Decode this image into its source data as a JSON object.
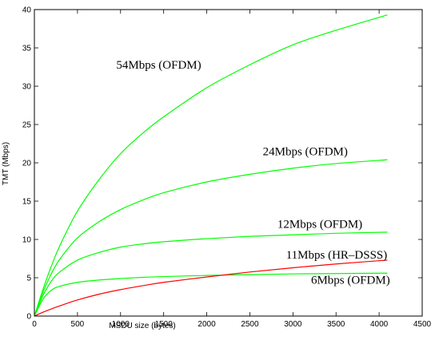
{
  "chart_data": {
    "type": "line",
    "title": "",
    "xlabel": "MSDU size (bytes)",
    "ylabel": "TMT (Mbps)",
    "xlim": [
      0,
      4500
    ],
    "ylim": [
      0,
      40
    ],
    "xticks": [
      0,
      500,
      1000,
      1500,
      2000,
      2500,
      3000,
      3500,
      4000,
      4500
    ],
    "yticks": [
      0,
      5,
      10,
      15,
      20,
      25,
      30,
      35,
      40
    ],
    "grid": false,
    "legend": "none",
    "series": [
      {
        "name": "54Mbps (OFDM)",
        "color": "#00ff00",
        "x": [
          0,
          100,
          200,
          300,
          500,
          750,
          1000,
          1250,
          1500,
          2000,
          2500,
          3000,
          3500,
          4096
        ],
        "y": [
          0,
          3.5,
          6.6,
          9.3,
          13.7,
          17.8,
          21.2,
          23.8,
          26.0,
          29.8,
          32.8,
          35.4,
          37.3,
          39.3
        ]
      },
      {
        "name": "24Mbps (OFDM)",
        "color": "#00ff00",
        "x": [
          0,
          100,
          200,
          300,
          500,
          750,
          1000,
          1250,
          1500,
          2000,
          2500,
          3000,
          3500,
          4096
        ],
        "y": [
          0,
          3.1,
          5.6,
          7.5,
          10.2,
          12.3,
          13.9,
          15.1,
          16.1,
          17.5,
          18.5,
          19.3,
          19.9,
          20.4
        ]
      },
      {
        "name": "12Mbps (OFDM)",
        "color": "#00ff00",
        "x": [
          0,
          100,
          200,
          300,
          500,
          750,
          1000,
          1250,
          1500,
          2000,
          2500,
          3000,
          3500,
          4096
        ],
        "y": [
          0,
          2.7,
          4.6,
          5.8,
          7.3,
          8.3,
          9.0,
          9.4,
          9.7,
          10.1,
          10.4,
          10.6,
          10.8,
          10.95
        ]
      },
      {
        "name": "6Mbps (OFDM)",
        "color": "#00ff00",
        "x": [
          0,
          100,
          200,
          300,
          500,
          750,
          1000,
          1250,
          1500,
          2000,
          2500,
          3000,
          3500,
          4096
        ],
        "y": [
          0,
          2.2,
          3.4,
          3.9,
          4.4,
          4.7,
          4.9,
          5.05,
          5.15,
          5.3,
          5.4,
          5.5,
          5.55,
          5.6
        ]
      },
      {
        "name": "11Mbps (HR–DSSS)",
        "color": "#ff0000",
        "x": [
          0,
          100,
          200,
          300,
          500,
          750,
          1000,
          1250,
          1500,
          2000,
          2500,
          3000,
          3500,
          4096
        ],
        "y": [
          0,
          0.5,
          0.95,
          1.35,
          2.1,
          2.85,
          3.45,
          3.95,
          4.4,
          5.1,
          5.75,
          6.3,
          6.8,
          7.3
        ]
      }
    ],
    "annotations": [
      {
        "text": "54Mbps (OFDM)",
        "x": 950,
        "y": 32.3
      },
      {
        "text": "24Mbps (OFDM)",
        "x": 2650,
        "y": 21.0
      },
      {
        "text": "12Mbps (OFDM)",
        "x": 2820,
        "y": 11.5
      },
      {
        "text": "11Mbps (HR–DSSS)",
        "x": 2920,
        "y": 7.5
      },
      {
        "text": "6Mbps (OFDM)",
        "x": 3210,
        "y": 4.2
      }
    ]
  }
}
